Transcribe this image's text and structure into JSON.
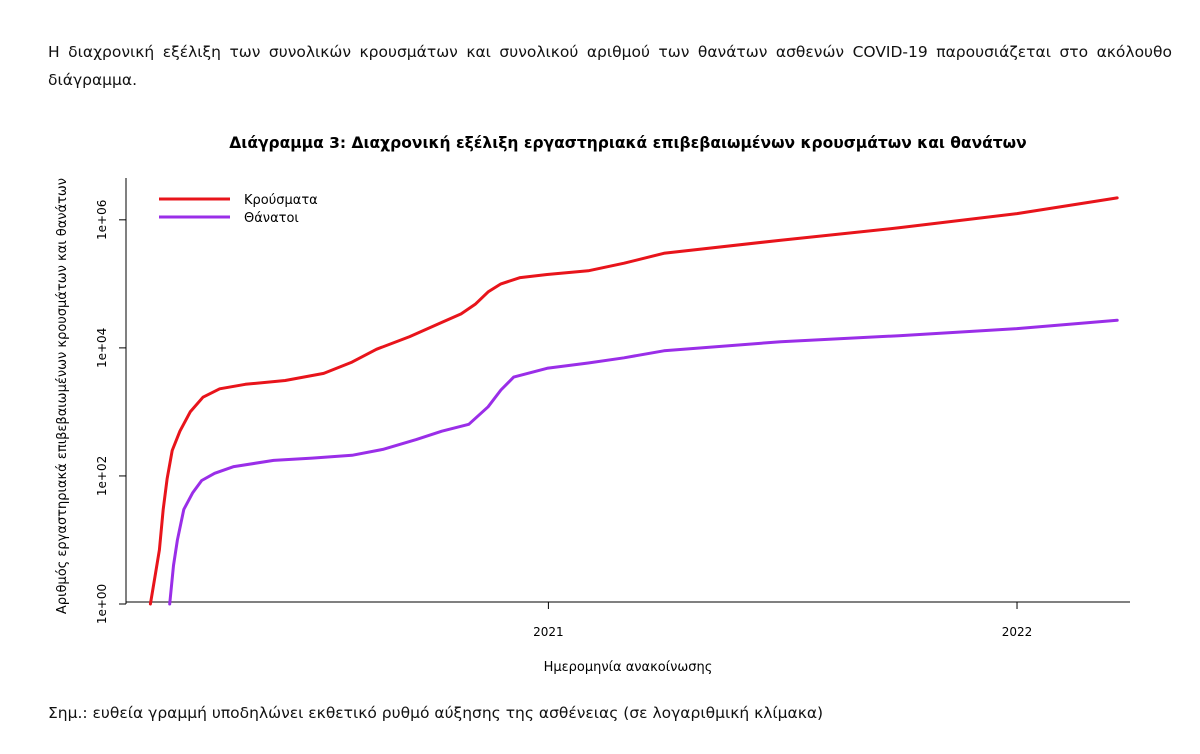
{
  "text": {
    "intro": "Η διαχρονική εξέλιξη των συνολικών κρουσμάτων και συνολικού αριθμού των θανάτων ασθενών COVID-19 παρουσιάζεται στο ακόλουθο διάγραμμα.",
    "note": "Σημ.: ευθεία γραμμή υποδηλώνει εκθετικό ρυθμό αύξησης της ασθένειας (σε λογαριθμική κλίμακα)"
  },
  "chart_data": {
    "type": "line",
    "title": "Διάγραμμα 3: Διαχρονική εξέλιξη εργαστηριακά επιβεβαιωμένων κρουσμάτων και θανάτων",
    "xlabel": "Ημερομηνία ανακοίνωσης",
    "ylabel": "Αριθμός εργαστηριακά επιβεβαιωμένων κρουσμάτων και θανάτων",
    "y_scale": "log",
    "ylim": [
      1,
      4500000
    ],
    "xlim": [
      "2020-02-07",
      "2022-03-30"
    ],
    "y_ticks": [
      {
        "value": 1,
        "label": "1e+00"
      },
      {
        "value": 100,
        "label": "1e+02"
      },
      {
        "value": 10000,
        "label": "1e+04"
      },
      {
        "value": 1000000,
        "label": "1e+06"
      }
    ],
    "x_ticks": [
      {
        "value": "2021-01-01",
        "label": "2021"
      },
      {
        "value": "2022-01-01",
        "label": "2022"
      }
    ],
    "legend_position": "top-left",
    "grid": false,
    "series": [
      {
        "name": "Κρούσματα",
        "color": "#e8141b",
        "points": [
          [
            "2020-02-26",
            1
          ],
          [
            "2020-03-01",
            3
          ],
          [
            "2020-03-04",
            7
          ],
          [
            "2020-03-07",
            30
          ],
          [
            "2020-03-10",
            90
          ],
          [
            "2020-03-14",
            250
          ],
          [
            "2020-03-20",
            500
          ],
          [
            "2020-03-28",
            1000
          ],
          [
            "2020-04-07",
            1700
          ],
          [
            "2020-04-20",
            2300
          ],
          [
            "2020-05-10",
            2700
          ],
          [
            "2020-06-10",
            3100
          ],
          [
            "2020-07-10",
            4000
          ],
          [
            "2020-08-01",
            6000
          ],
          [
            "2020-08-20",
            9500
          ],
          [
            "2020-09-15",
            15000
          ],
          [
            "2020-10-10",
            25000
          ],
          [
            "2020-10-25",
            34000
          ],
          [
            "2020-11-05",
            48000
          ],
          [
            "2020-11-15",
            75000
          ],
          [
            "2020-11-25",
            100000
          ],
          [
            "2020-12-10",
            125000
          ],
          [
            "2020-12-31",
            140000
          ],
          [
            "2021-02-01",
            160000
          ],
          [
            "2021-03-01",
            210000
          ],
          [
            "2021-04-01",
            300000
          ],
          [
            "2021-07-01",
            480000
          ],
          [
            "2021-10-01",
            750000
          ],
          [
            "2022-01-01",
            1250000
          ],
          [
            "2022-03-20",
            2200000
          ]
        ]
      },
      {
        "name": "Θάνατοι",
        "color": "#9a2ee8",
        "points": [
          [
            "2020-03-12",
            1
          ],
          [
            "2020-03-15",
            4
          ],
          [
            "2020-03-18",
            10
          ],
          [
            "2020-03-23",
            30
          ],
          [
            "2020-03-30",
            55
          ],
          [
            "2020-04-06",
            85
          ],
          [
            "2020-04-16",
            110
          ],
          [
            "2020-05-01",
            140
          ],
          [
            "2020-06-01",
            175
          ],
          [
            "2020-07-01",
            190
          ],
          [
            "2020-08-01",
            210
          ],
          [
            "2020-08-25",
            260
          ],
          [
            "2020-09-20",
            370
          ],
          [
            "2020-10-10",
            500
          ],
          [
            "2020-10-31",
            640
          ],
          [
            "2020-11-15",
            1200
          ],
          [
            "2020-11-25",
            2200
          ],
          [
            "2020-12-05",
            3500
          ],
          [
            "2020-12-31",
            4800
          ],
          [
            "2021-02-01",
            5800
          ],
          [
            "2021-03-01",
            7000
          ],
          [
            "2021-04-01",
            9000
          ],
          [
            "2021-07-01",
            12500
          ],
          [
            "2021-10-01",
            15500
          ],
          [
            "2022-01-01",
            20000
          ],
          [
            "2022-03-20",
            27000
          ]
        ]
      }
    ]
  }
}
